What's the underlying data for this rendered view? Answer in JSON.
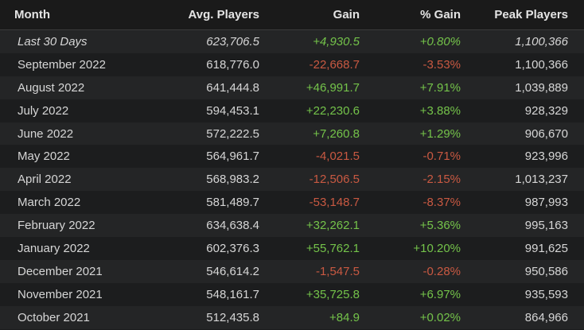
{
  "table": {
    "headers": [
      "Month",
      "Avg. Players",
      "Gain",
      "% Gain",
      "Peak Players"
    ],
    "rows": [
      [
        "Last 30 Days",
        "623,706.5",
        "+4,930.5",
        "+0.80%",
        "1,100,366"
      ],
      [
        "September 2022",
        "618,776.0",
        "-22,668.7",
        "-3.53%",
        "1,100,366"
      ],
      [
        "August 2022",
        "641,444.8",
        "+46,991.7",
        "+7.91%",
        "1,039,889"
      ],
      [
        "July 2022",
        "594,453.1",
        "+22,230.6",
        "+3.88%",
        "928,329"
      ],
      [
        "June 2022",
        "572,222.5",
        "+7,260.8",
        "+1.29%",
        "906,670"
      ],
      [
        "May 2022",
        "564,961.7",
        "-4,021.5",
        "-0.71%",
        "923,996"
      ],
      [
        "April 2022",
        "568,983.2",
        "-12,506.5",
        "-2.15%",
        "1,013,237"
      ],
      [
        "March 2022",
        "581,489.7",
        "-53,148.7",
        "-8.37%",
        "987,993"
      ],
      [
        "February 2022",
        "634,638.4",
        "+32,262.1",
        "+5.36%",
        "995,163"
      ],
      [
        "January 2022",
        "602,376.3",
        "+55,762.1",
        "+10.20%",
        "991,625"
      ],
      [
        "December 2021",
        "546,614.2",
        "-1,547.5",
        "-0.28%",
        "950,586"
      ],
      [
        "November 2021",
        "548,161.7",
        "+35,725.8",
        "+6.97%",
        "935,593"
      ],
      [
        "October 2021",
        "512,435.8",
        "+84.9",
        "+0.02%",
        "864,966"
      ]
    ]
  }
}
